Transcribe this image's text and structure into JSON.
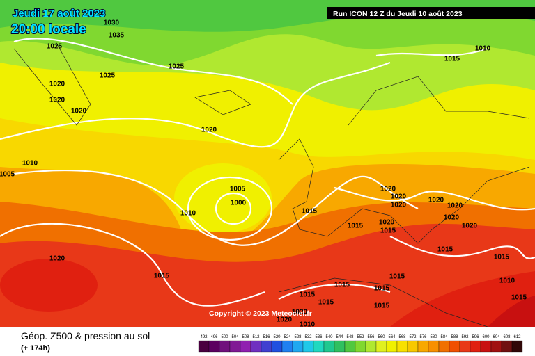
{
  "header": {
    "date": "Jeudi 17 août 2023",
    "time": "20:00 locale",
    "run": "Run ICON 12 Z du Jeudi 10 août 2023"
  },
  "map": {
    "isobar_labels": [
      "1030",
      "1035",
      "1025",
      "1025",
      "1025",
      "1020",
      "1020",
      "1020",
      "1020",
      "1015",
      "1010",
      "1010",
      "1005",
      "1005",
      "1000",
      "1010",
      "1015",
      "1015",
      "1020",
      "1020",
      "1020",
      "1020",
      "1020",
      "1015",
      "1020",
      "1020",
      "1020",
      "1015",
      "1020",
      "1015",
      "1015",
      "1015",
      "1015",
      "1015",
      "1015",
      "1015",
      "1020",
      "1020",
      "1010",
      "1015",
      "1010",
      "1015"
    ]
  },
  "footer": {
    "copyright": "Copyright © 2023 Meteociel.fr",
    "title": "Géop. Z500 & pression au sol",
    "lead_time": "(+ 174h)"
  },
  "colorbar": {
    "labels": [
      492,
      496,
      500,
      504,
      508,
      512,
      516,
      520,
      524,
      528,
      532,
      536,
      540,
      544,
      548,
      552,
      556,
      560,
      564,
      568,
      572,
      576,
      580,
      584,
      588,
      592,
      596,
      600,
      604,
      608,
      612
    ],
    "colors": [
      "#4a0040",
      "#5c0060",
      "#70107c",
      "#801a94",
      "#9020b0",
      "#7030c0",
      "#4040d0",
      "#2050e0",
      "#2080f0",
      "#20a8f0",
      "#20c8e8",
      "#20d8c0",
      "#20c890",
      "#30c060",
      "#50c840",
      "#80d830",
      "#b0e830",
      "#e0f020",
      "#f0f000",
      "#f8e000",
      "#f8c800",
      "#f8a800",
      "#f89000",
      "#f07000",
      "#f05000",
      "#e83818",
      "#e02010",
      "#c81010",
      "#a01010",
      "#701010",
      "#300808"
    ]
  }
}
